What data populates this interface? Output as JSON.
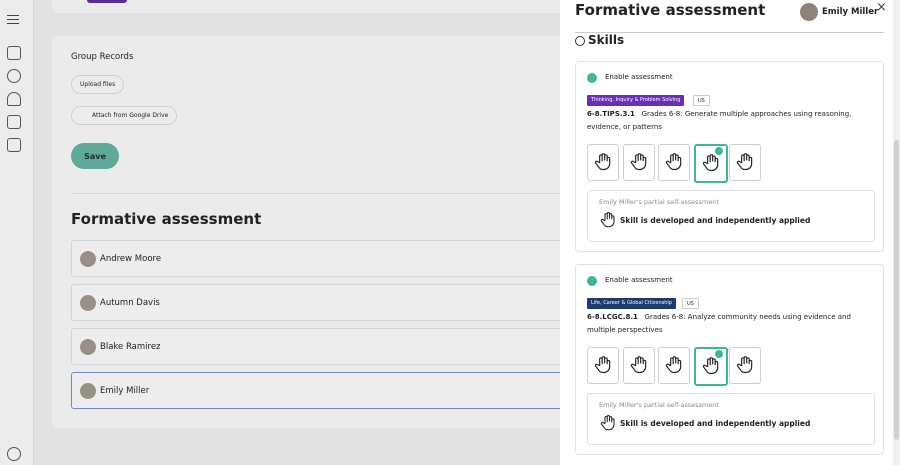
{
  "group_records": {
    "title": "Group Records",
    "upload": "Upload files",
    "attach": "Attach from Google Drive",
    "save": "Save"
  },
  "formative": {
    "title": "Formative assessment",
    "students": [
      "Andrew Moore",
      "Autumn Davis",
      "Blake Ramirez",
      "Emily Miller"
    ]
  },
  "panel": {
    "title": "Formative assessment",
    "user": "Emily Miller",
    "section": "Skills",
    "skills": [
      {
        "enable": "Enable assessment",
        "tag": "Thinking, Inquiry & Problem Solving",
        "region": "US",
        "code": "6-8.TIPS.3.1",
        "description": "Grades 6-8: Generate multiple approaches using reasoning, evidence, or patterns",
        "self_label": "Emily Miller's partial self-assessment",
        "self_value": "Skill is developed and independently applied"
      },
      {
        "enable": "Enable assessment",
        "tag": "Life, Career & Global Citizenship",
        "region": "US",
        "code": "6-8.LCGC.8.1",
        "description": "Grades 6-8: Analyze community needs using evidence and multiple perspectives",
        "self_label": "Emily Miller's partial self-assessment",
        "self_value": "Skill is developed and independently applied"
      }
    ]
  }
}
